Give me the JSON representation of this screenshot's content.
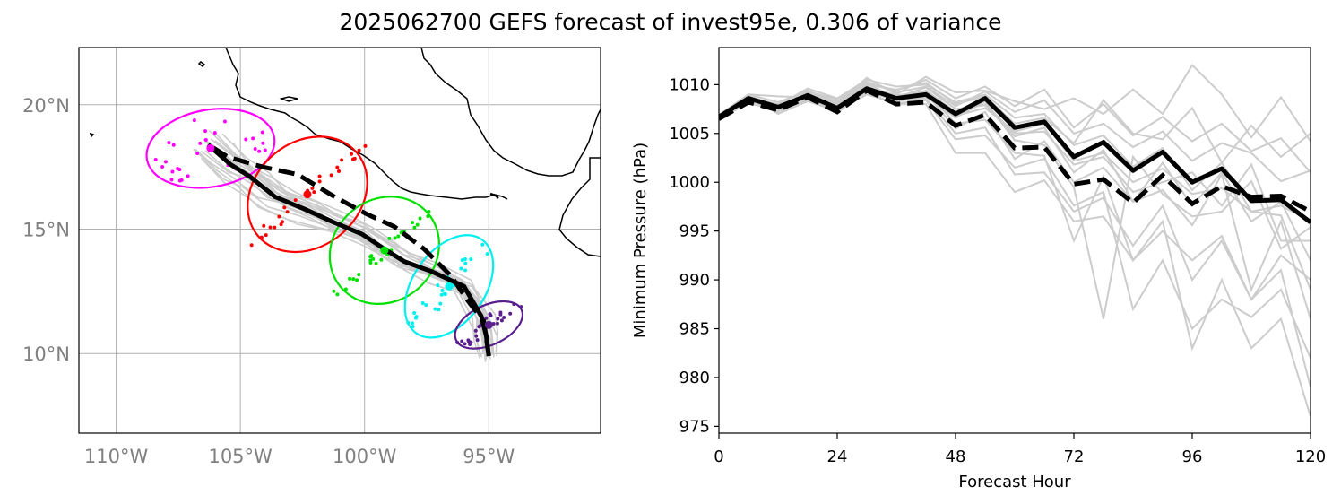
{
  "title": "2025062700 GEFS forecast of invest95e, 0.306 of variance",
  "colors": {
    "member": "#cccccc",
    "mean": "#000000",
    "day1": "#ff00ff",
    "day2": "#ff0000",
    "day3": "#00e000",
    "day4": "#00f0f0",
    "day5": "#5a1f8c",
    "map_tick": "#808080"
  },
  "chart_data": [
    {
      "type": "map",
      "lon_ticks": [
        "110°W",
        "105°W",
        "100°W",
        "95°W"
      ],
      "lat_ticks": [
        "20°N",
        "15°N",
        "10°N"
      ],
      "lon_tick_values": [
        -110,
        -105,
        -100,
        -95
      ],
      "lat_tick_values": [
        20,
        15,
        10
      ],
      "xlim": [
        -111.5,
        -90.5
      ],
      "ylim": [
        6.8,
        22.3
      ],
      "grid": true,
      "mean_track_solid": [
        [
          -95,
          9.9
        ],
        [
          -95.1,
          10.7
        ],
        [
          -95.3,
          11.5
        ],
        [
          -96,
          12.7
        ],
        [
          -97.3,
          13.3
        ],
        [
          -98.4,
          13.7
        ],
        [
          -99.2,
          14.2
        ],
        [
          -100.1,
          14.8
        ],
        [
          -101.3,
          15.3
        ],
        [
          -102.4,
          15.8
        ],
        [
          -103.6,
          16.3
        ],
        [
          -104.6,
          17.1
        ],
        [
          -105.4,
          17.6
        ],
        [
          -106.3,
          18.4
        ]
      ],
      "mean_track_dashed": [
        [
          -95,
          9.9
        ],
        [
          -95.1,
          10.6
        ],
        [
          -95.2,
          11.3
        ],
        [
          -95.9,
          12.2
        ],
        [
          -96.5,
          13.1
        ],
        [
          -97.6,
          14.2
        ],
        [
          -98.8,
          15.1
        ],
        [
          -99.9,
          15.6
        ],
        [
          -101.2,
          16.3
        ],
        [
          -102.7,
          17.2
        ],
        [
          -104.1,
          17.5
        ],
        [
          -105.5,
          17.9
        ],
        [
          -106.3,
          18.4
        ]
      ],
      "ellipses": [
        {
          "label": "day1",
          "color": "#ff00ff",
          "center": [
            -106.2,
            18.25
          ],
          "semi_major": 2.6,
          "semi_minor": 1.55,
          "angle_deg": -10
        },
        {
          "label": "day2",
          "color": "#ff0000",
          "center": [
            -102.3,
            16.4
          ],
          "semi_major": 2.6,
          "semi_minor": 2.1,
          "angle_deg": -40
        },
        {
          "label": "day3",
          "color": "#00e000",
          "center": [
            -99.2,
            14.15
          ],
          "semi_major": 2.3,
          "semi_minor": 2.05,
          "angle_deg": -40
        },
        {
          "label": "day4",
          "color": "#00f0f0",
          "center": [
            -96.6,
            12.7
          ],
          "semi_major": 2.3,
          "semi_minor": 1.45,
          "angle_deg": -55
        },
        {
          "label": "day5",
          "color": "#5a1f8c",
          "center": [
            -95.0,
            11.15
          ],
          "semi_major": 1.45,
          "semi_minor": 0.8,
          "angle_deg": -25
        }
      ]
    },
    {
      "type": "line",
      "xlabel": "Forecast Hour",
      "ylabel": "Minimum Pressure (hPa)",
      "xlim": [
        0,
        120
      ],
      "ylim": [
        974.3,
        1013.8
      ],
      "xticks": [
        0,
        24,
        48,
        72,
        96,
        120
      ],
      "yticks": [
        975,
        980,
        985,
        990,
        995,
        1000,
        1005,
        1010
      ],
      "x": [
        0,
        6,
        12,
        18,
        24,
        30,
        36,
        42,
        48,
        54,
        60,
        66,
        72,
        78,
        84,
        90,
        96,
        102,
        108,
        114,
        120
      ],
      "series_mean_solid": [
        1006.7,
        1008.6,
        1007.7,
        1008.9,
        1007.6,
        1009.6,
        1008.6,
        1009.0,
        1007.0,
        1008.6,
        1005.6,
        1006.2,
        1002.6,
        1004.1,
        1001.2,
        1003.1,
        1000.0,
        1001.4,
        998.1,
        998.2,
        995.9
      ],
      "series_mean_dashed": [
        1006.5,
        1008.2,
        1007.4,
        1008.7,
        1007.2,
        1009.4,
        1008.0,
        1008.2,
        1005.8,
        1006.9,
        1003.5,
        1003.6,
        999.8,
        1000.3,
        997.9,
        1000.7,
        997.8,
        999.6,
        998.5,
        998.6,
        997.0
      ],
      "members": [
        [
          1006.5,
          1009.0,
          1008.2,
          1009.3,
          1008.5,
          1010.2,
          1009.4,
          1010.5,
          1008.6,
          1009.8,
          1007.8,
          1009.5,
          1005.6,
          1008.0,
          1004.8,
          1006.7,
          1004.2,
          1006.0,
          1003.2,
          1004.5,
          1001.0
        ],
        [
          1006.7,
          1008.4,
          1007.6,
          1009.0,
          1008.1,
          1010.7,
          1009.0,
          1010.8,
          1009.2,
          1009.4,
          1008.3,
          1007.5,
          1008.6,
          1007.0,
          1009.5,
          1007.0,
          1012.0,
          1009.0,
          1004.6,
          1008.7,
          1004.2
        ],
        [
          1006.9,
          1009.0,
          1008.8,
          1008.7,
          1008.0,
          1010.1,
          1008.7,
          1009.7,
          1007.5,
          1007.9,
          1004.7,
          1005.6,
          1001.0,
          1003.3,
          998.0,
          1002.0,
          997.6,
          1001.0,
          996.0,
          998.0,
          992.0
        ],
        [
          1006.3,
          1008.8,
          1007.9,
          1009.6,
          1008.6,
          1010.5,
          1009.8,
          1010.0,
          1008.2,
          1009.0,
          1006.6,
          1007.0,
          1003.8,
          1004.8,
          1001.6,
          1003.5,
          999.2,
          1002.0,
          997.0,
          996.6,
          989.0
        ],
        [
          1006.6,
          1008.3,
          1007.2,
          1008.6,
          1007.5,
          1009.3,
          1008.4,
          1008.6,
          1005.0,
          1005.6,
          1000.8,
          1001.0,
          997.0,
          998.4,
          993.5,
          997.6,
          990.0,
          994.0,
          988.0,
          991.0,
          979.0
        ],
        [
          1006.8,
          1008.7,
          1007.3,
          1008.5,
          1007.6,
          1009.8,
          1008.9,
          1009.3,
          1006.0,
          1006.4,
          1003.0,
          1002.7,
          994.0,
          1000.6,
          992.0,
          996.0,
          983.0,
          990.0,
          983.0,
          986.0,
          976.0
        ],
        [
          1006.5,
          1008.5,
          1007.6,
          1009.2,
          1007.8,
          1009.9,
          1008.3,
          1008.8,
          1006.6,
          1008.3,
          1004.3,
          1003.8,
          999.5,
          986.0,
          1002.6,
          998.8,
          996.5,
          997.0,
          1000.1,
          993.2,
          995.4
        ],
        [
          1006.7,
          1008.9,
          1007.0,
          1008.3,
          1007.3,
          1009.0,
          1008.1,
          1008.4,
          1004.4,
          1004.8,
          1001.5,
          1002.4,
          997.6,
          999.0,
          987.0,
          992.0,
          985.0,
          988.0,
          986.2,
          989.0,
          982.0
        ],
        [
          1006.4,
          1008.2,
          1007.7,
          1009.1,
          1008.3,
          1010.3,
          1009.2,
          1009.8,
          1007.8,
          1009.3,
          1007.2,
          1008.4,
          1005.0,
          1006.0,
          1003.6,
          1005.2,
          1002.2,
          1004.0,
          1003.0,
          1000.1,
          1001.2
        ],
        [
          1006.6,
          1008.6,
          1007.5,
          1008.8,
          1007.1,
          1009.5,
          1008.8,
          1009.1,
          1005.5,
          1007.2,
          1002.4,
          1004.2,
          1000.0,
          1001.5,
          998.0,
          999.2,
          995.6,
          1000.8,
          989.0,
          996.0,
          986.0
        ],
        [
          1006.8,
          1008.1,
          1007.4,
          1008.4,
          1007.4,
          1009.2,
          1008.0,
          1008.0,
          1003.0,
          1003.0,
          999.0,
          1000.2,
          996.0,
          996.5,
          992.0,
          995.0,
          992.0,
          994.5,
          988.0,
          992.5,
          990.0
        ],
        [
          1006.5,
          1008.7,
          1008.0,
          1009.4,
          1008.2,
          1010.0,
          1009.5,
          1010.2,
          1008.0,
          1008.8,
          1006.0,
          1006.6,
          1004.0,
          1008.4,
          1005.0,
          1004.4,
          1007.6,
          1002.0,
          1005.8,
          1002.6,
          1005.0
        ],
        [
          1006.7,
          1008.4,
          1007.8,
          1009.0,
          1007.9,
          1009.6,
          1008.5,
          1009.4,
          1007.2,
          1008.0,
          1005.0,
          1005.2,
          1001.8,
          1002.6,
          999.0,
          1000.0,
          1001.0,
          997.6,
          1001.8,
          994.0,
          994.0
        ],
        [
          1006.6,
          1008.5,
          1007.6,
          1008.9,
          1007.7,
          1009.7,
          1008.7,
          1009.2,
          1006.8,
          1007.6,
          1005.2,
          1006.0,
          1002.2,
          1003.0,
          1000.0,
          1001.4,
          998.8,
          999.4,
          997.0,
          997.6,
          996.0
        ]
      ]
    }
  ]
}
